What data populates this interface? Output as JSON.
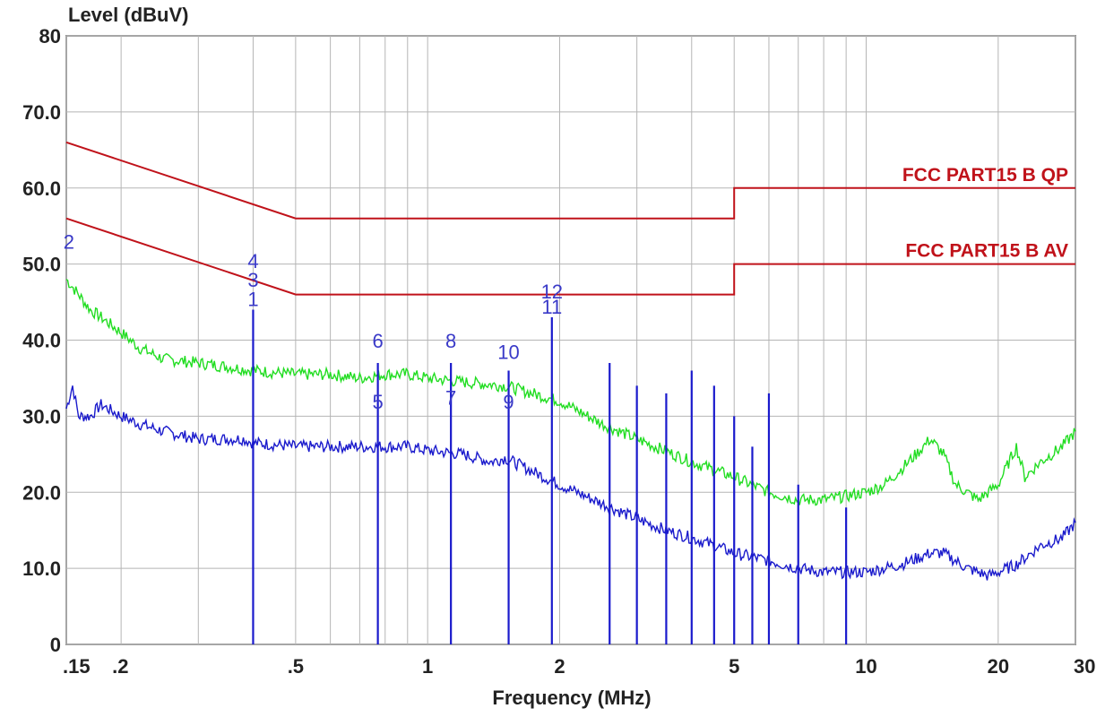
{
  "chart_data": {
    "type": "line",
    "ylabel": "Level (dBuV)",
    "xlabel": "Frequency (MHz)",
    "x_scale": "log",
    "xlim": [
      0.15,
      30
    ],
    "ylim": [
      0,
      80
    ],
    "grid": true,
    "y_ticks": [
      {
        "value": 80,
        "label": "80"
      },
      {
        "value": 70,
        "label": "70.0"
      },
      {
        "value": 60,
        "label": "60.0"
      },
      {
        "value": 50,
        "label": "50.0"
      },
      {
        "value": 40,
        "label": "40.0"
      },
      {
        "value": 30,
        "label": "30.0"
      },
      {
        "value": 20,
        "label": "20.0"
      },
      {
        "value": 10,
        "label": "10.0"
      },
      {
        "value": 0,
        "label": "0"
      }
    ],
    "x_ticks": [
      {
        "value": 0.15,
        "label": ".15"
      },
      {
        "value": 0.2,
        "label": ".2"
      },
      {
        "value": 0.5,
        "label": ".5"
      },
      {
        "value": 1,
        "label": "1"
      },
      {
        "value": 2,
        "label": "2"
      },
      {
        "value": 5,
        "label": "5"
      },
      {
        "value": 10,
        "label": "10"
      },
      {
        "value": 20,
        "label": "20"
      },
      {
        "value": 30,
        "label": "30"
      }
    ],
    "x_minor_grid": [
      0.3,
      0.4,
      0.6,
      0.7,
      0.8,
      0.9,
      3,
      4,
      6,
      7,
      8,
      9,
      30
    ],
    "limit_lines": [
      {
        "name": "FCC PART15 B QP",
        "color": "#c0121a",
        "points": [
          [
            0.15,
            66
          ],
          [
            0.5,
            56
          ],
          [
            5,
            56
          ],
          [
            5,
            60
          ],
          [
            30,
            60
          ]
        ]
      },
      {
        "name": "FCC PART15 B AV",
        "color": "#c0121a",
        "points": [
          [
            0.15,
            56
          ],
          [
            0.5,
            46
          ],
          [
            5,
            46
          ],
          [
            5,
            50
          ],
          [
            30,
            50
          ]
        ]
      }
    ],
    "series": [
      {
        "color": "#22dd22",
        "points": [
          [
            0.15,
            48
          ],
          [
            0.16,
            46
          ],
          [
            0.17,
            44
          ],
          [
            0.18,
            43
          ],
          [
            0.2,
            41
          ],
          [
            0.22,
            39
          ],
          [
            0.25,
            37.5
          ],
          [
            0.3,
            37
          ],
          [
            0.35,
            36.5
          ],
          [
            0.4,
            36
          ],
          [
            0.5,
            35.5
          ],
          [
            0.6,
            35.5
          ],
          [
            0.7,
            35
          ],
          [
            0.8,
            35.5
          ],
          [
            0.9,
            35.5
          ],
          [
            1,
            35
          ],
          [
            1.2,
            34.5
          ],
          [
            1.5,
            34
          ],
          [
            2,
            32
          ],
          [
            2.5,
            29
          ],
          [
            3,
            27
          ],
          [
            4,
            24
          ],
          [
            5,
            22
          ],
          [
            6,
            20
          ],
          [
            7,
            19
          ],
          [
            8,
            19
          ],
          [
            9,
            19.5
          ],
          [
            10,
            20
          ],
          [
            11,
            21
          ],
          [
            12,
            23
          ],
          [
            13,
            25
          ],
          [
            14,
            27
          ],
          [
            15,
            25
          ],
          [
            16,
            21
          ],
          [
            18,
            19
          ],
          [
            20,
            21
          ],
          [
            22,
            26
          ],
          [
            23,
            22
          ],
          [
            25,
            24
          ],
          [
            28,
            26
          ],
          [
            30,
            28
          ]
        ]
      },
      {
        "color": "#1a1acc",
        "points": [
          [
            0.15,
            31
          ],
          [
            0.155,
            34
          ],
          [
            0.16,
            30
          ],
          [
            0.17,
            30
          ],
          [
            0.18,
            31.5
          ],
          [
            0.2,
            30
          ],
          [
            0.22,
            29
          ],
          [
            0.25,
            28
          ],
          [
            0.3,
            27
          ],
          [
            0.38,
            27
          ],
          [
            0.4,
            26.5
          ],
          [
            0.5,
            26
          ],
          [
            0.6,
            26
          ],
          [
            0.7,
            26
          ],
          [
            0.8,
            26
          ],
          [
            0.9,
            26
          ],
          [
            1,
            25.5
          ],
          [
            1.2,
            25
          ],
          [
            1.4,
            24
          ],
          [
            1.5,
            24.5
          ],
          [
            1.7,
            23
          ],
          [
            2,
            21
          ],
          [
            2.5,
            18.5
          ],
          [
            3,
            16.5
          ],
          [
            3.5,
            15
          ],
          [
            4,
            14
          ],
          [
            4.5,
            13
          ],
          [
            5,
            12
          ],
          [
            6,
            11
          ],
          [
            7,
            10
          ],
          [
            8,
            9.5
          ],
          [
            9,
            9.5
          ],
          [
            10,
            9.5
          ],
          [
            12,
            10.5
          ],
          [
            14,
            12
          ],
          [
            15,
            12
          ],
          [
            17,
            10
          ],
          [
            19,
            9
          ],
          [
            20,
            9.5
          ],
          [
            22,
            10.5
          ],
          [
            25,
            13
          ],
          [
            28,
            14
          ],
          [
            30,
            16
          ]
        ]
      }
    ],
    "spikes": [
      {
        "x": 0.4,
        "top": 44,
        "color": "#1a1acc"
      },
      {
        "x": 0.77,
        "top": 37,
        "color": "#1a1acc"
      },
      {
        "x": 1.13,
        "top": 37,
        "color": "#1a1acc"
      },
      {
        "x": 1.53,
        "top": 36,
        "color": "#1a1acc"
      },
      {
        "x": 1.92,
        "top": 43,
        "color": "#1a1acc"
      },
      {
        "x": 2.6,
        "top": 37,
        "color": "#1a1acc"
      },
      {
        "x": 3.0,
        "top": 34,
        "color": "#1a1acc"
      },
      {
        "x": 3.5,
        "top": 33,
        "color": "#1a1acc"
      },
      {
        "x": 4.0,
        "top": 36,
        "color": "#1a1acc"
      },
      {
        "x": 4.5,
        "top": 34,
        "color": "#1a1acc"
      },
      {
        "x": 5.0,
        "top": 30,
        "color": "#1a1acc"
      },
      {
        "x": 5.5,
        "top": 26,
        "color": "#1a1acc"
      },
      {
        "x": 6.0,
        "top": 33,
        "color": "#1a1acc"
      },
      {
        "x": 7.0,
        "top": 21,
        "color": "#1a1acc"
      },
      {
        "x": 9.0,
        "top": 18,
        "color": "#1a1acc"
      }
    ],
    "markers": [
      {
        "label": "1",
        "x": 0.4,
        "y": 44.5
      },
      {
        "label": "2",
        "x": 0.152,
        "y": 52
      },
      {
        "label": "3",
        "x": 0.4,
        "y": 47
      },
      {
        "label": "4",
        "x": 0.4,
        "y": 49.5
      },
      {
        "label": "5",
        "x": 0.77,
        "y": 31
      },
      {
        "label": "6",
        "x": 0.77,
        "y": 39
      },
      {
        "label": "7",
        "x": 1.13,
        "y": 31.5
      },
      {
        "label": "8",
        "x": 1.13,
        "y": 39
      },
      {
        "label": "9",
        "x": 1.53,
        "y": 31
      },
      {
        "label": "10",
        "x": 1.53,
        "y": 37.5
      },
      {
        "label": "11",
        "x": 1.92,
        "y": 43.5
      },
      {
        "label": "12",
        "x": 1.92,
        "y": 45.5
      }
    ]
  }
}
